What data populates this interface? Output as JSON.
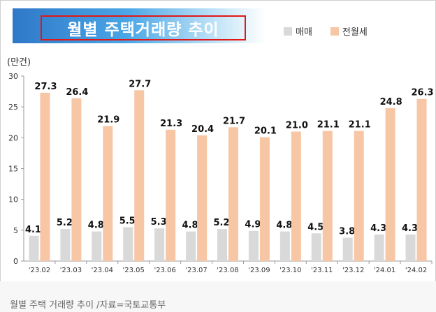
{
  "title": "월별 주택거래량 추이",
  "caption": "월별 주택 거래량 추이 /자료=국토교통부",
  "colors": {
    "sale": "#d9d9d9",
    "rent": "#f7c6a5"
  },
  "chart_data": {
    "type": "bar",
    "title": "월별 주택거래량 추이",
    "ylabel": "(만건)",
    "xlabel": "",
    "ylim": [
      0,
      30
    ],
    "yticks": [
      0,
      5,
      10,
      15,
      20,
      25,
      30
    ],
    "legend": "top-right",
    "grid": false,
    "categories": [
      "'23.02",
      "'23.03",
      "'23.04",
      "'23.05",
      "'23.06",
      "'23.07",
      "'23.08",
      "'23.09",
      "'23.10",
      "'23.11",
      "'23.12",
      "'24.01",
      "'24.02"
    ],
    "series": [
      {
        "name": "매매",
        "values": [
          4.1,
          5.2,
          4.8,
          5.5,
          5.3,
          4.8,
          5.2,
          4.9,
          4.8,
          4.5,
          3.8,
          4.3,
          4.3
        ]
      },
      {
        "name": "전월세",
        "values": [
          27.3,
          26.4,
          21.9,
          27.7,
          21.3,
          20.4,
          21.7,
          20.1,
          21.0,
          21.1,
          21.1,
          24.8,
          26.3
        ]
      }
    ]
  }
}
